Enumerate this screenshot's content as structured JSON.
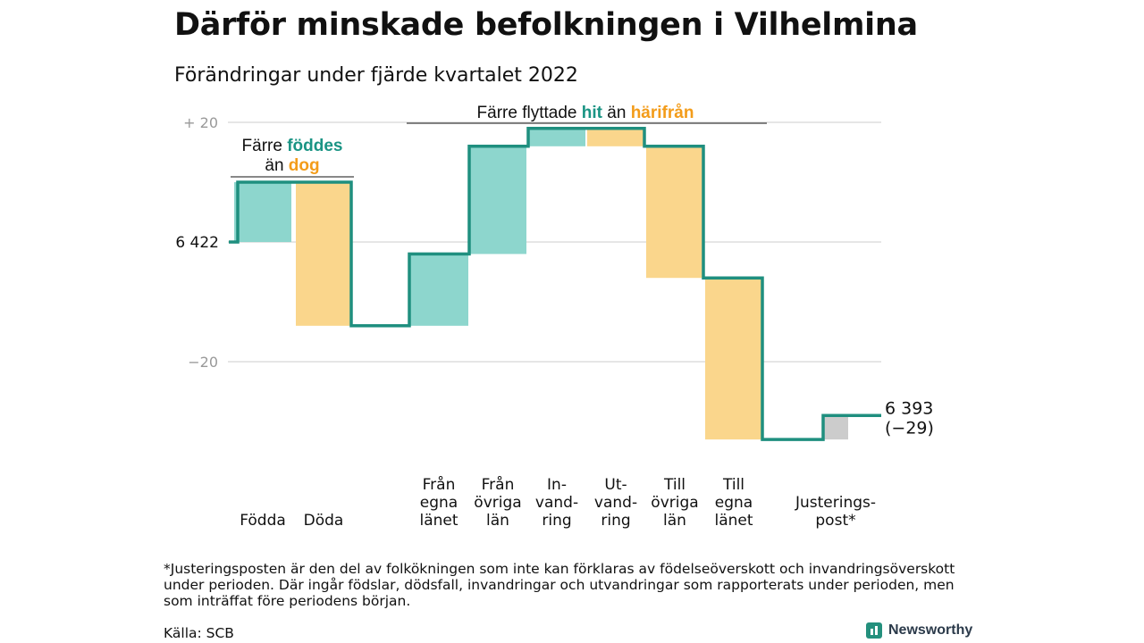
{
  "title": "Därför minskade befolkningen i Vilhelmina",
  "subtitle": "Förändringar under fjärde kvartalet 2022",
  "colors": {
    "increase": "#8dd6cd",
    "decrease": "#fad68c",
    "adjustment": "#cccccc",
    "line": "#1f8f7f",
    "teal_text": "#1a9484",
    "orange_text": "#f39c1a",
    "grid": "#dddddd"
  },
  "annotations": {
    "births": {
      "line1": "Färre ",
      "line1_accent": "föddes",
      "line2": "än ",
      "line2_accent": "dog"
    },
    "moves": {
      "prefix": "Färre flyttade ",
      "accent1": "hit",
      "middle": " än ",
      "accent2": "härifrån"
    }
  },
  "chart_data": {
    "type": "waterfall",
    "start_value": 6422,
    "start_label": "6 422",
    "end_label_line1": "6 393",
    "end_label_line2": "(−29)",
    "ylim": [
      -26,
      21
    ],
    "yticks": [
      {
        "value": 20,
        "label": "+ 20"
      },
      {
        "value": 0,
        "label": ""
      },
      {
        "value": -20,
        "label": "−20"
      }
    ],
    "steps": [
      {
        "label_lines": [
          "Födda"
        ],
        "change": 10,
        "kind": "increase"
      },
      {
        "label_lines": [
          "Döda"
        ],
        "change": -24,
        "kind": "decrease"
      },
      {
        "label_lines": [
          "Från",
          "egna",
          "länet"
        ],
        "change": 12,
        "kind": "increase"
      },
      {
        "label_lines": [
          "Från",
          "övriga",
          "län"
        ],
        "change": 18,
        "kind": "increase"
      },
      {
        "label_lines": [
          "In-",
          "vand-",
          "ring"
        ],
        "change": 3,
        "kind": "increase"
      },
      {
        "label_lines": [
          "Ut-",
          "vand-",
          "ring"
        ],
        "change": -3,
        "kind": "decrease"
      },
      {
        "label_lines": [
          "Till",
          "övriga",
          "län"
        ],
        "change": -22,
        "kind": "decrease"
      },
      {
        "label_lines": [
          "Till",
          "egna",
          "länet"
        ],
        "change": -27,
        "kind": "decrease"
      },
      {
        "label_lines": [
          "Justerings-",
          "post*"
        ],
        "change": 4,
        "kind": "adjustment"
      }
    ]
  },
  "footnote": "*Justeringsposten är den del av folkökningen som inte kan förklaras av födelseöverskott och invandringsöverskott under perioden. Där ingår födslar, dödsfall, invandringar och utvandringar som rapporterats under perioden, men som inträffat före periodens början.",
  "source": "Källa: SCB",
  "brand": {
    "name": "Newsworthy",
    "icon": "bar-chart-icon"
  }
}
